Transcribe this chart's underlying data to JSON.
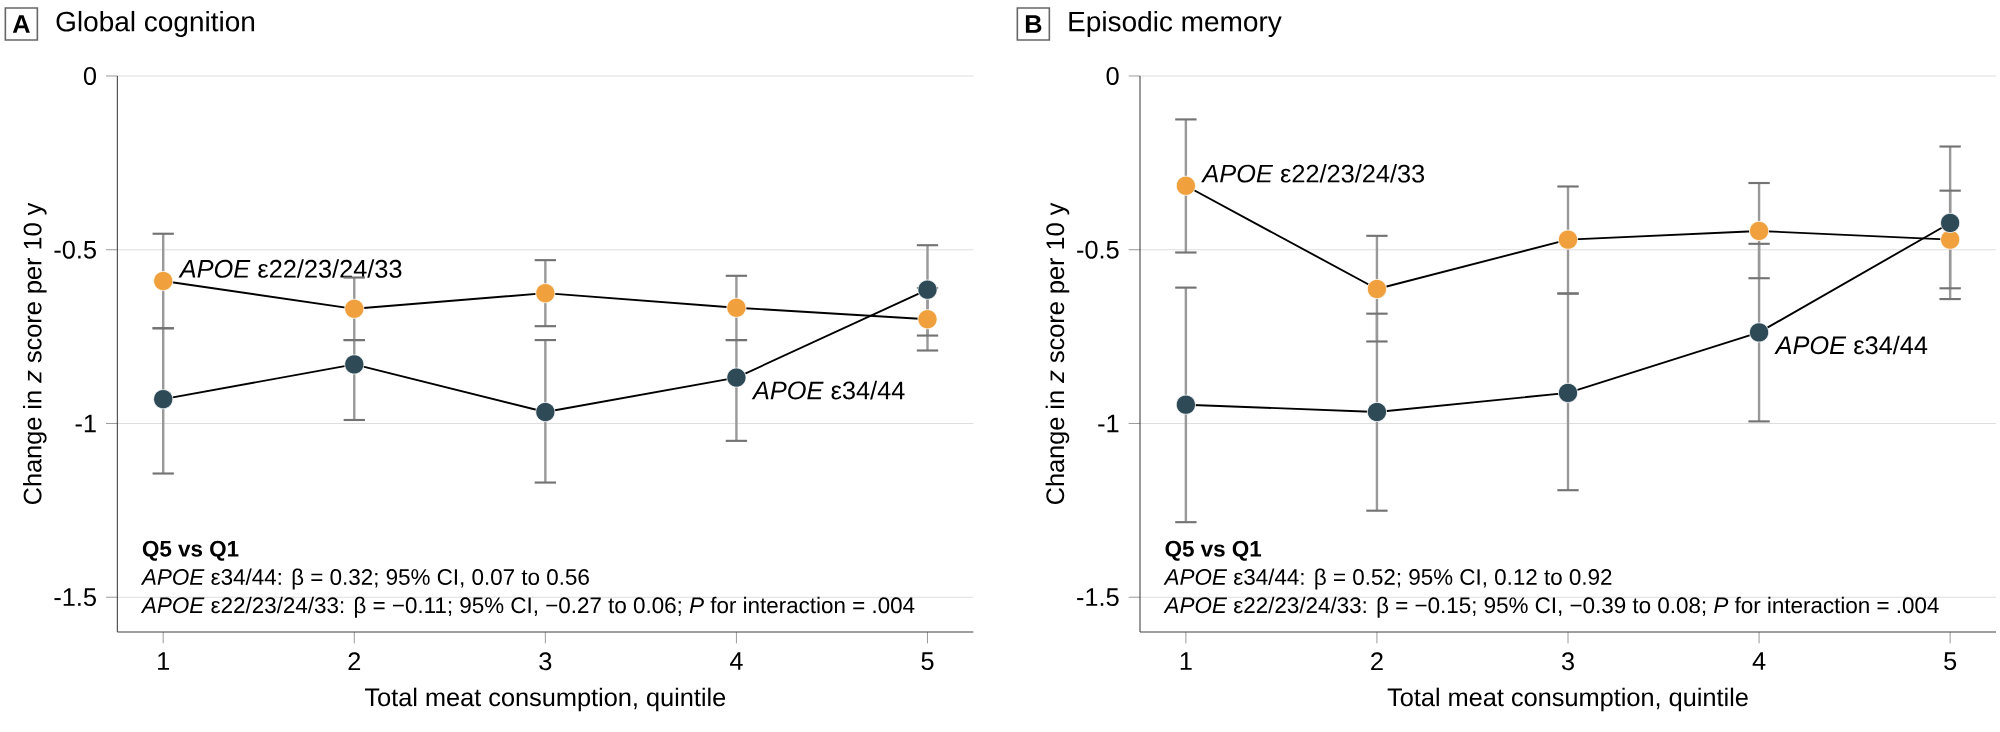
{
  "chart_data": [
    {
      "type": "line",
      "title": "Global cognition",
      "subtitle": "A",
      "xlabel": "Total meat consumption, quintile",
      "ylabel": "Change in *z* score per 10 y",
      "x": [
        1,
        2,
        3,
        4,
        5
      ],
      "xlim": [
        0.76,
        5.24
      ],
      "xticks": [
        1,
        2,
        3,
        4,
        5
      ],
      "ylim": [
        -1.6,
        0
      ],
      "yticks": [
        -1.5,
        -1,
        -0.5,
        0
      ],
      "grid": "y",
      "legend": false,
      "marker": "circle",
      "line_style": "solid",
      "series": [
        {
          "name": "*APOE* ε22/23/24/33",
          "color": "#f0a03c",
          "values": [
            -0.59,
            -0.67,
            -0.625,
            -0.667,
            -0.7
          ],
          "errors": [
            [
              -0.726,
              -0.454
            ],
            [
              -0.76,
              -0.58
            ],
            [
              -0.72,
              -0.53
            ],
            [
              -0.76,
              -0.575
            ],
            [
              -0.79,
              -0.61
            ]
          ]
        },
        {
          "name": "*APOE* ε34/44",
          "color": "#2e4a57",
          "values": [
            -0.93,
            -0.83,
            -0.967,
            -0.868,
            -0.615
          ],
          "errors": [
            [
              -1.144,
              -0.726
            ],
            [
              -0.99,
              -0.76
            ],
            [
              -1.17,
              -0.76
            ],
            [
              -1.05,
              -0.76
            ],
            [
              -0.747,
              -0.487
            ]
          ]
        }
      ],
      "annotations": [
        "Q5 vs Q1",
        "*APOE* ε34/44: β = 0.32; 95% CI, 0.07 to 0.56",
        "*APOE* ε22/23/24/33: β = −0.11; 95% CI, −0.27 to 0.06; *P* for interaction = .004"
      ]
    },
    {
      "type": "line",
      "title": "Episodic memory",
      "subtitle": "B",
      "xlabel": "Total meat consumption, quintile",
      "ylabel": "Change in *z* score per 10 y",
      "x": [
        1,
        2,
        3,
        4,
        5
      ],
      "xlim": [
        0.76,
        5.24
      ],
      "xticks": [
        1,
        2,
        3,
        4,
        5
      ],
      "ylim": [
        -1.6,
        0
      ],
      "yticks": [
        -1.5,
        -1,
        -0.5,
        0
      ],
      "grid": "y",
      "legend": false,
      "marker": "circle",
      "line_style": "solid",
      "series": [
        {
          "name": "*APOE* ε22/23/24/33",
          "color": "#f0a03c",
          "values": [
            -0.316,
            -0.613,
            -0.471,
            -0.446,
            -0.471
          ],
          "errors": [
            [
              -0.508,
              -0.125
            ],
            [
              -0.764,
              -0.46
            ],
            [
              -0.626,
              -0.318
            ],
            [
              -0.582,
              -0.308
            ],
            [
              -0.642,
              -0.33
            ]
          ]
        },
        {
          "name": "*APOE* ε34/44",
          "color": "#2e4a57",
          "values": [
            -0.946,
            -0.967,
            -0.912,
            -0.738,
            -0.423
          ],
          "errors": [
            [
              -1.284,
              -0.609
            ],
            [
              -1.251,
              -0.684
            ],
            [
              -1.192,
              -0.626
            ],
            [
              -0.994,
              -0.483
            ],
            [
              -0.611,
              -0.203
            ]
          ]
        }
      ],
      "annotations": [
        "Q5 vs Q1",
        "*APOE* ε34/44: β = 0.52; 95% CI, 0.12 to 0.92",
        "*APOE* ε22/23/24/33: β = −0.15; 95% CI, −0.39 to 0.08; *P* for interaction = .004"
      ]
    }
  ]
}
